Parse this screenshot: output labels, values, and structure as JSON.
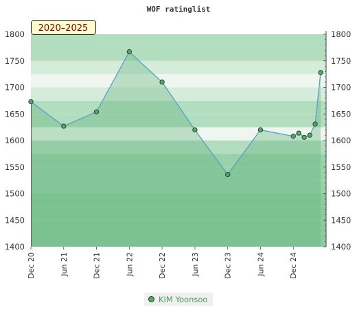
{
  "title": "WOF ratinglist",
  "period_badge": "2020–2025",
  "colors": {
    "line": "#5b9fc4",
    "marker": "#5aa66a",
    "marker_edge": "#1e3d24",
    "legend_text": "#4a9a5a",
    "band_light": "#eff6ef",
    "band_mid": "#b3ddbf",
    "band_dark": "#7cc493"
  },
  "chart_data": {
    "type": "area",
    "title": "WOF ratinglist",
    "x_type": "date",
    "xlim": [
      "2020-12",
      "2025-06"
    ],
    "xticks": [
      {
        "date": "2020-12",
        "label": "Dec 20"
      },
      {
        "date": "2021-06",
        "label": "Jun 21"
      },
      {
        "date": "2021-12",
        "label": "Dec 21"
      },
      {
        "date": "2022-06",
        "label": "Jun 22"
      },
      {
        "date": "2022-12",
        "label": "Dec 22"
      },
      {
        "date": "2023-06",
        "label": "Jun 23"
      },
      {
        "date": "2023-12",
        "label": "Dec 23"
      },
      {
        "date": "2024-06",
        "label": "Jun 24"
      },
      {
        "date": "2024-12",
        "label": "Dec 24"
      }
    ],
    "ylim": [
      1400,
      1800
    ],
    "yticks": [
      1400,
      1450,
      1500,
      1550,
      1600,
      1650,
      1700,
      1750,
      1800
    ],
    "grid": false,
    "legend_position": "bottom",
    "series": [
      {
        "name": "KIM Yoonsoo",
        "points": [
          {
            "x": "2020-12",
            "y": 1673
          },
          {
            "x": "2021-06",
            "y": 1627
          },
          {
            "x": "2021-12",
            "y": 1654
          },
          {
            "x": "2022-06",
            "y": 1767
          },
          {
            "x": "2022-12",
            "y": 1710
          },
          {
            "x": "2023-06",
            "y": 1620
          },
          {
            "x": "2023-12",
            "y": 1536
          },
          {
            "x": "2024-06",
            "y": 1620
          },
          {
            "x": "2024-12",
            "y": 1608
          },
          {
            "x": "2025-01",
            "y": 1614
          },
          {
            "x": "2025-02",
            "y": 1606
          },
          {
            "x": "2025-03",
            "y": 1610
          },
          {
            "x": "2025-04",
            "y": 1631
          },
          {
            "x": "2025-05",
            "y": 1728
          }
        ]
      }
    ]
  }
}
